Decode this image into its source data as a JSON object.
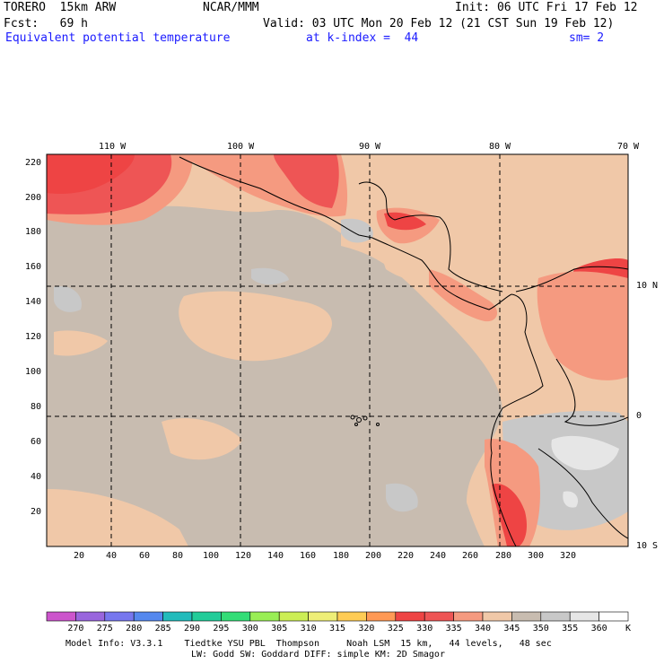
{
  "header": {
    "model": "TORERO  15km ARW",
    "org": "NCAR/MMM",
    "init": "Init: 06 UTC Fri 17 Feb 12",
    "fcst": "Fcst:   69 h",
    "valid": "Valid: 03 UTC Mon 20 Feb 12 (21 CST Sun 19 Feb 12)",
    "field": "Equivalent potential temperature",
    "level": "at k-index =  44",
    "smooth": "sm= 2"
  },
  "map": {
    "longitude_labels": [
      "110 W",
      "100 W",
      "90 W",
      "80 W",
      "70 W"
    ],
    "latitude_labels": [
      "10 N",
      "0",
      "10 S"
    ],
    "y_ticks": [
      "220",
      "200",
      "180",
      "160",
      "140",
      "120",
      "100",
      "80",
      "60",
      "40",
      "20"
    ],
    "x_ticks": [
      "20",
      "40",
      "60",
      "80",
      "100",
      "120",
      "140",
      "160",
      "180",
      "200",
      "220",
      "240",
      "260",
      "280",
      "300",
      "320"
    ]
  },
  "colorbar": {
    "levels": [
      "270",
      "275",
      "280",
      "285",
      "290",
      "295",
      "300",
      "305",
      "310",
      "315",
      "320",
      "325",
      "330",
      "335",
      "340",
      "345",
      "350",
      "355",
      "360"
    ],
    "unit": "K",
    "colors": [
      "#cc55cc",
      "#9966dd",
      "#7777ee",
      "#5588ee",
      "#22bbbb",
      "#22cc99",
      "#33dd77",
      "#99ee55",
      "#ccee55",
      "#eeee77",
      "#ffcc55",
      "#ff9955",
      "#ee4444",
      "#ee5555",
      "#f59a80",
      "#f0c8a8",
      "#c8bcb0",
      "#c8c8c8",
      "#e6e6e6",
      "#ffffff"
    ]
  },
  "footer": {
    "line1": "Model Info: V3.3.1    Tiedtke YSU PBL  Thompson     Noah LSM  15 km,   44 levels,   48 sec",
    "line2": "LW: Godd SW: Goddard DIFF: simple KM: 2D Smagor"
  }
}
